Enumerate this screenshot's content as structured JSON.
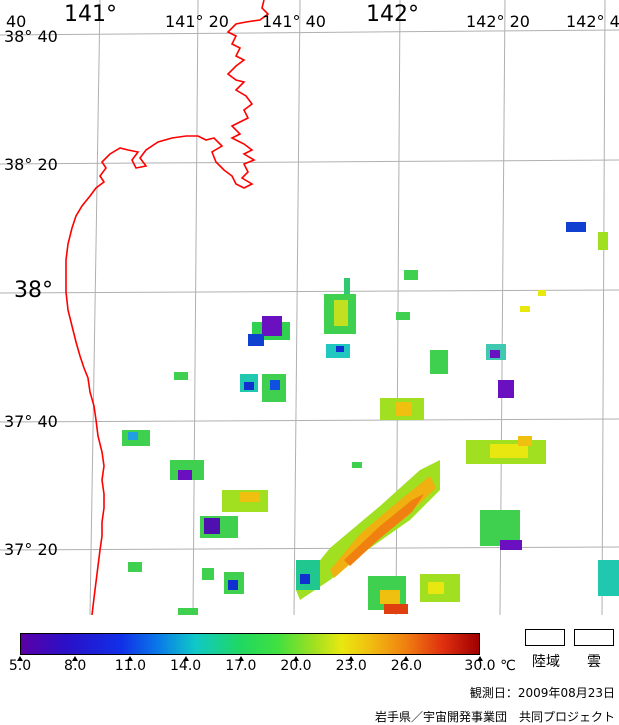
{
  "map": {
    "lon_labels": [
      {
        "text": "141°",
        "size": "big"
      },
      {
        "text": "141° 20",
        "size": "small"
      },
      {
        "text": "141° 40",
        "size": "small"
      },
      {
        "text": "142°",
        "size": "big"
      },
      {
        "text": "142° 20",
        "size": "small"
      },
      {
        "text": "142° 4",
        "size": "small"
      }
    ],
    "lat_labels": [
      {
        "text": "38° 40",
        "size": "small"
      },
      {
        "text": "38° 20",
        "size": "small"
      },
      {
        "text": "38°",
        "size": "big"
      },
      {
        "text": "37° 40",
        "size": "small"
      },
      {
        "text": "37° 20",
        "size": "small"
      }
    ],
    "corner_label": "40",
    "coastline_color": "#ff0000",
    "grid_color": "#b0b0b0"
  },
  "colorbar": {
    "ticks": [
      "5.0",
      "8.0",
      "11.0",
      "14.0",
      "17.0",
      "20.0",
      "23.0",
      "26.0",
      "30.0"
    ],
    "unit": "℃",
    "range": [
      5.0,
      30.0
    ]
  },
  "legend": {
    "land": "陸域",
    "cloud": "雲"
  },
  "observation_date": "観測日：2009年08月23日",
  "credit": "岩手県／宇宙開発事業団　共同プロジェクト"
}
